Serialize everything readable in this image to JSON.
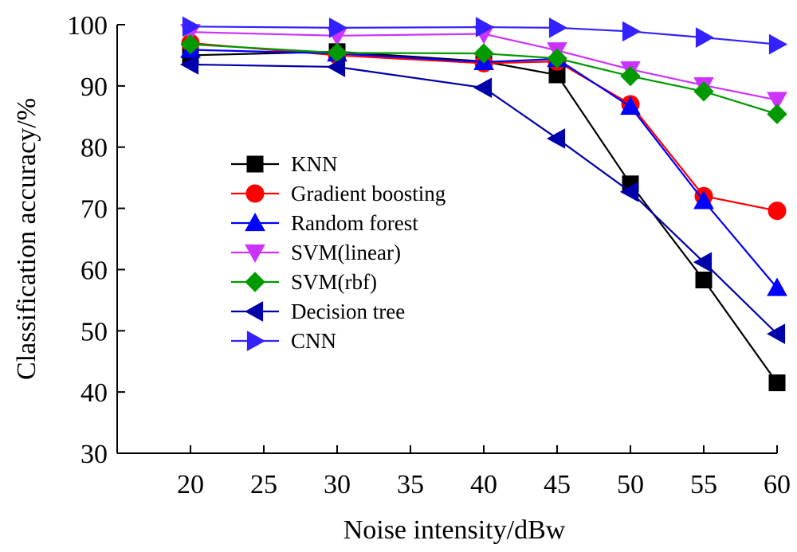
{
  "chart_data": {
    "type": "line",
    "title": "",
    "xlabel": "Noise intensity/dBw",
    "ylabel": "Classification accuracy/%",
    "xlim": [
      15,
      60
    ],
    "ylim": [
      30,
      100
    ],
    "x_ticks": [
      20,
      25,
      30,
      35,
      40,
      45,
      50,
      55,
      60
    ],
    "y_ticks": [
      30,
      40,
      50,
      60,
      70,
      80,
      90,
      100
    ],
    "grid": false,
    "legend_position": "center-left",
    "x": [
      20,
      30,
      40,
      45,
      50,
      55,
      60
    ],
    "series": [
      {
        "name": "KNN",
        "color": "#000000",
        "marker": "square",
        "values": [
          95.0,
          95.6,
          94.0,
          91.8,
          74.0,
          58.3,
          41.5
        ]
      },
      {
        "name": "Gradient boosting",
        "color": "#ff0000",
        "marker": "circle",
        "values": [
          97.0,
          95.0,
          93.7,
          94.0,
          87.0,
          72.0,
          69.6
        ]
      },
      {
        "name": "Random forest",
        "color": "#0000ff",
        "marker": "triangle-up",
        "values": [
          95.9,
          95.3,
          93.9,
          94.4,
          86.6,
          71.2,
          57.0
        ]
      },
      {
        "name": "SVM(linear)",
        "color": "#cc33ff",
        "marker": "triangle-down",
        "values": [
          98.8,
          98.2,
          98.5,
          95.8,
          92.7,
          90.1,
          87.7
        ]
      },
      {
        "name": "SVM(rbf)",
        "color": "#009900",
        "marker": "diamond",
        "values": [
          96.8,
          95.4,
          95.3,
          94.5,
          91.6,
          89.1,
          85.4
        ]
      },
      {
        "name": "Decision tree",
        "color": "#0000aa",
        "marker": "triangle-left",
        "values": [
          93.5,
          93.1,
          89.7,
          81.4,
          72.7,
          61.2,
          49.5
        ]
      },
      {
        "name": "CNN",
        "color": "#3322ff",
        "marker": "triangle-right",
        "values": [
          99.7,
          99.5,
          99.6,
          99.5,
          98.9,
          97.9,
          96.8
        ]
      }
    ]
  }
}
